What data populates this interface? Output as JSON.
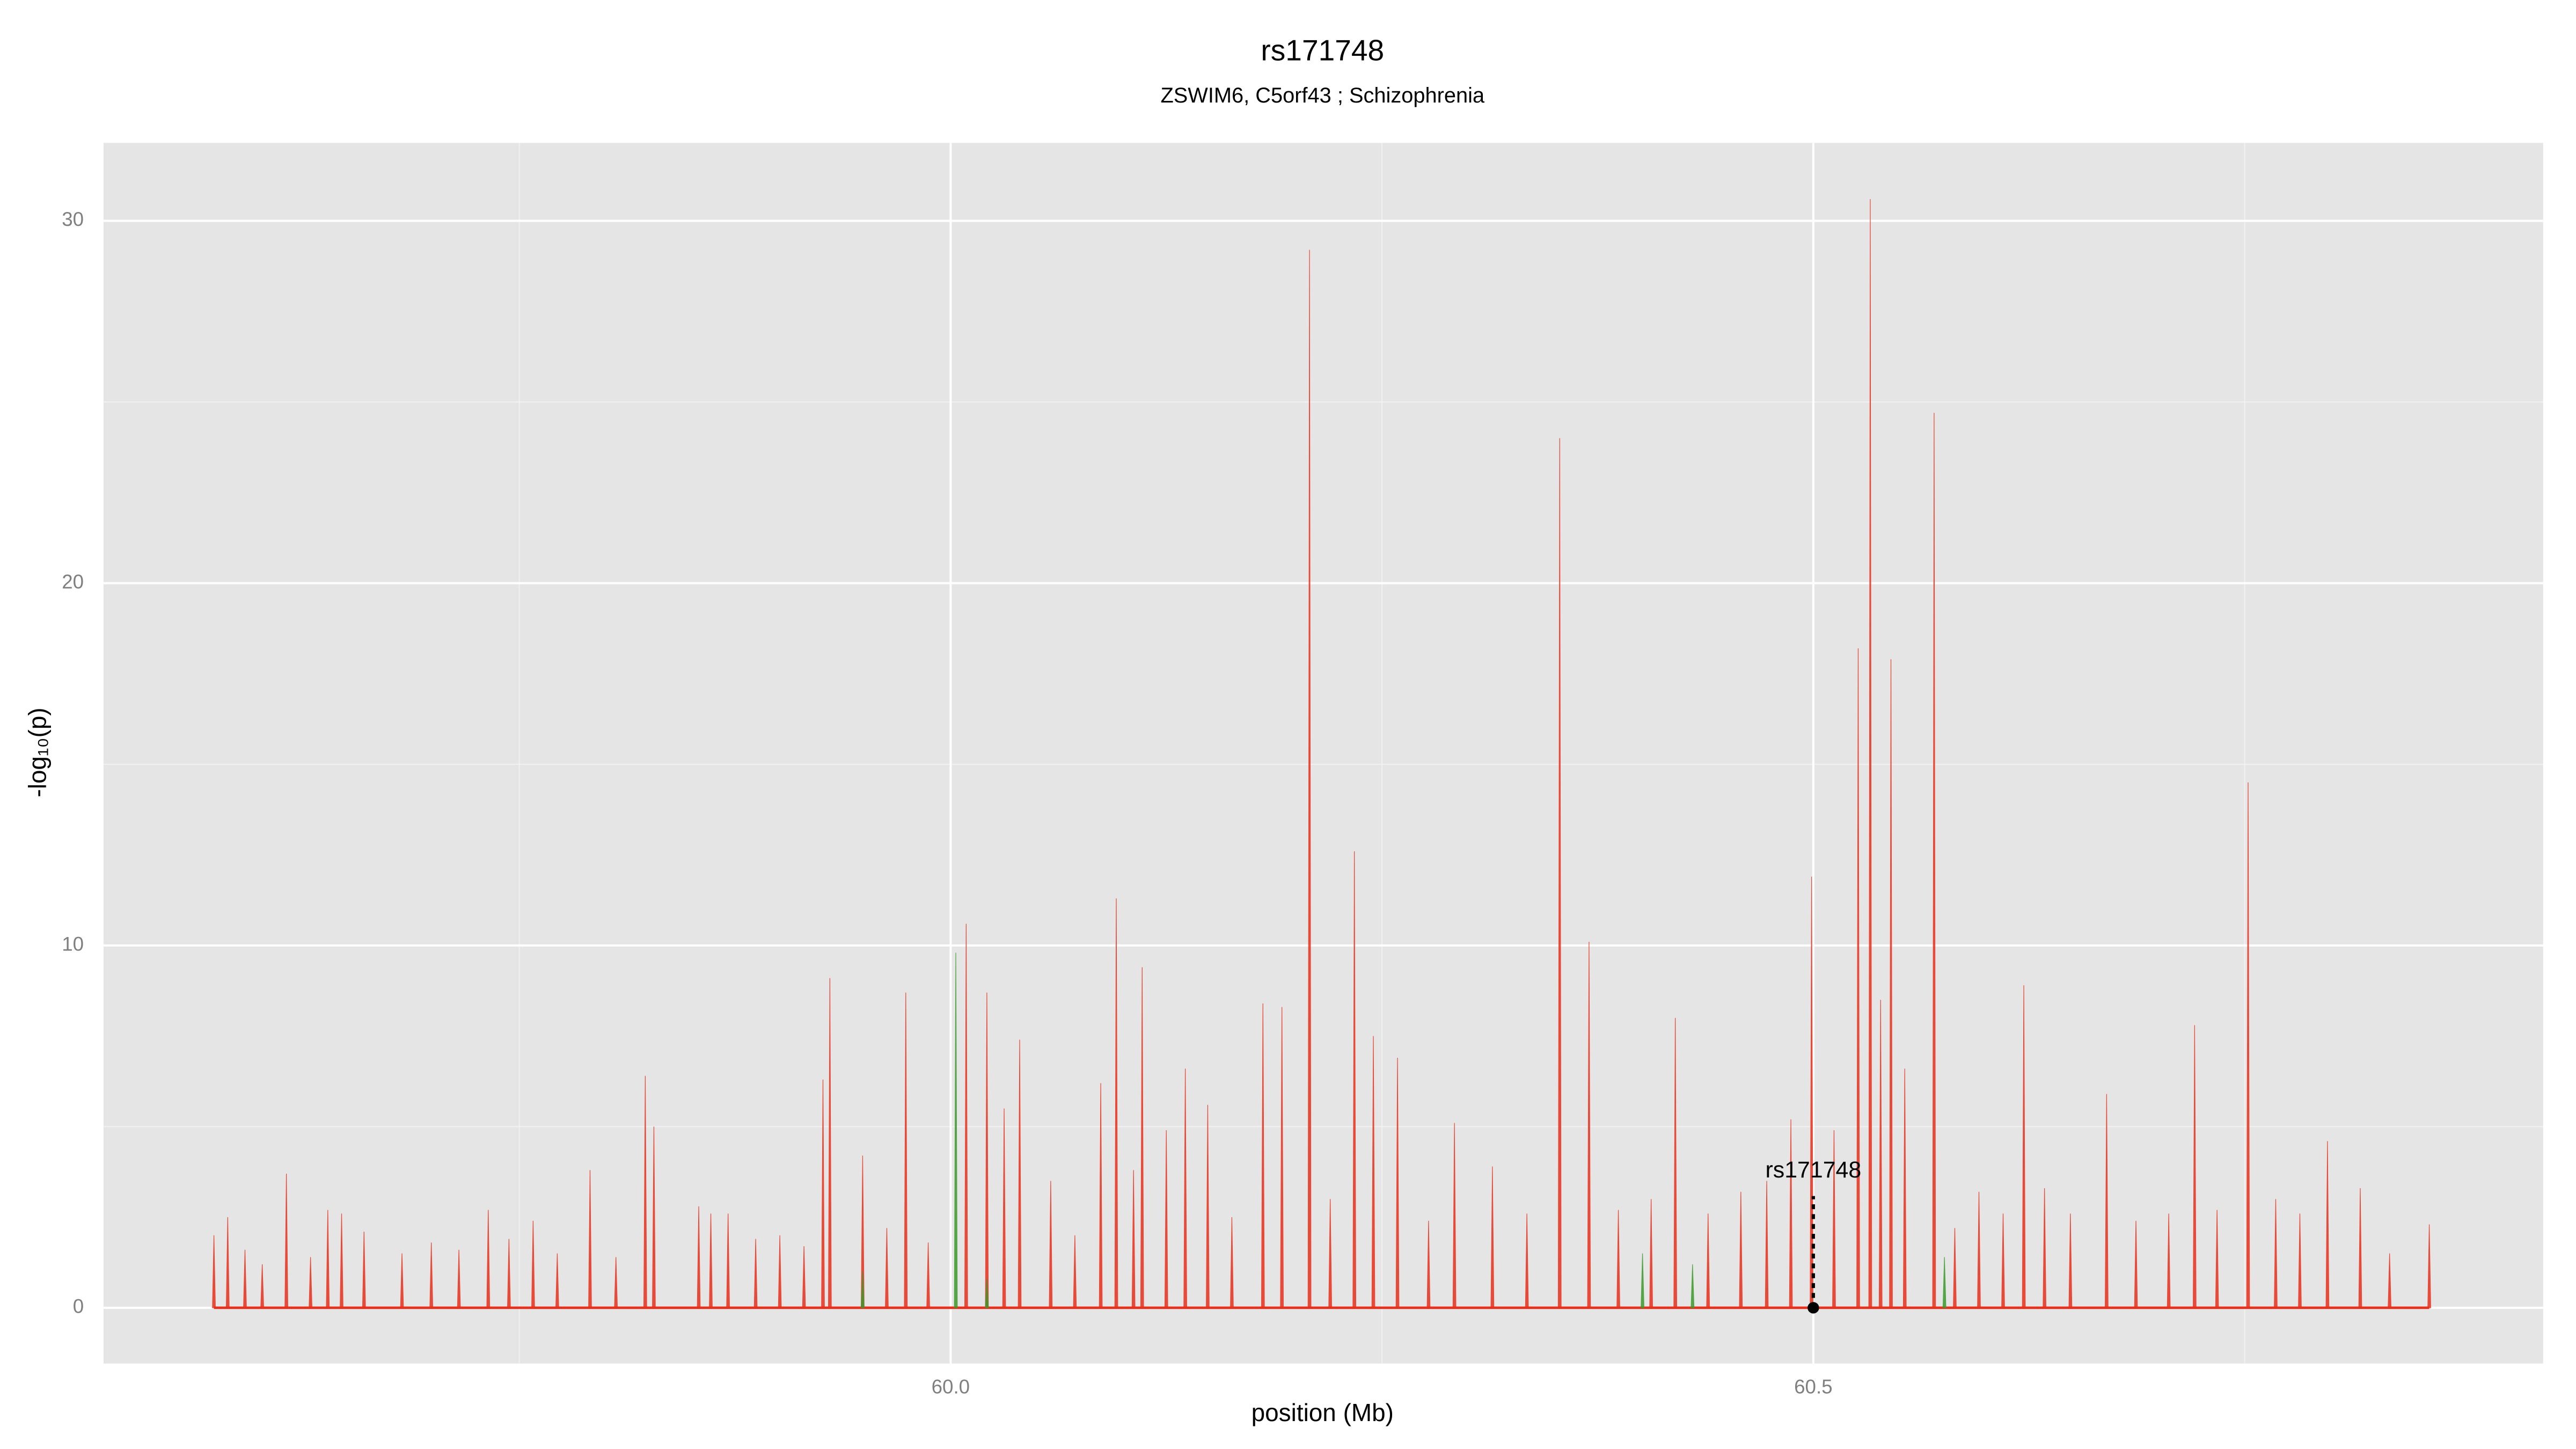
{
  "chart_data": {
    "type": "spike",
    "title": "rs171748",
    "subtitle": "ZSWIM6, C5orf43 ; Schizophrenia",
    "x_label": "position (Mb)",
    "y_label": "-log₁₀(p)",
    "xlim": [
      59.509,
      60.923
    ],
    "ylim": [
      -1.54,
      32.15
    ],
    "xticks": [
      {
        "value": 60,
        "label": "60.0"
      },
      {
        "value": 60.5,
        "label": "60.5"
      }
    ],
    "yticks": [
      0,
      10,
      20,
      30
    ],
    "grid": true,
    "series": [
      {
        "color": "#e8301c",
        "x": [
          59.573,
          59.581,
          59.591,
          59.601,
          59.615,
          59.629,
          59.639,
          59.647,
          59.66,
          59.682,
          59.699,
          59.715,
          59.732,
          59.744,
          59.758,
          59.772,
          59.791,
          59.806,
          59.823,
          59.828,
          59.854,
          59.861,
          59.871,
          59.887,
          59.901,
          59.915,
          59.926,
          59.93,
          59.949,
          59.963,
          59.974,
          59.987,
          60.009,
          60.021,
          60.031,
          60.04,
          60.058,
          60.072,
          60.087,
          60.096,
          60.106,
          60.111,
          60.125,
          60.136,
          60.149,
          60.163,
          60.181,
          60.192,
          60.208,
          60.22,
          60.234,
          60.245,
          60.259,
          60.277,
          60.292,
          60.314,
          60.334,
          60.353,
          60.37,
          60.387,
          60.406,
          60.42,
          60.439,
          60.458,
          60.473,
          60.487,
          60.499,
          60.512,
          60.526,
          60.533,
          60.539,
          60.545,
          60.553,
          60.57,
          60.582,
          60.596,
          60.61,
          60.622,
          60.634,
          60.649,
          60.67,
          60.687,
          60.706,
          60.721,
          60.734,
          60.752,
          60.768,
          60.782,
          60.798,
          60.817,
          60.834,
          60.857
        ],
        "values": [
          2.0,
          2.5,
          1.6,
          1.2,
          3.7,
          1.4,
          2.7,
          2.6,
          2.1,
          1.5,
          1.8,
          1.6,
          2.7,
          1.9,
          2.4,
          1.5,
          3.8,
          1.4,
          6.4,
          5.0,
          2.8,
          2.6,
          2.6,
          1.9,
          2.0,
          1.7,
          6.3,
          9.1,
          4.2,
          2.2,
          8.7,
          1.8,
          10.6,
          8.7,
          5.5,
          7.4,
          3.5,
          2.0,
          6.2,
          11.3,
          3.8,
          9.4,
          4.9,
          6.6,
          5.6,
          2.5,
          8.4,
          8.3,
          29.2,
          3.0,
          12.6,
          7.5,
          6.9,
          2.4,
          5.1,
          3.9,
          2.6,
          24.0,
          10.1,
          2.7,
          3.0,
          8.0,
          2.6,
          3.2,
          3.5,
          5.2,
          11.9,
          4.9,
          18.2,
          30.6,
          8.5,
          17.9,
          6.6,
          24.7,
          2.2,
          3.2,
          2.6,
          8.9,
          3.3,
          2.6,
          5.9,
          2.4,
          2.6,
          7.8,
          2.7,
          14.5,
          3.0,
          2.6,
          4.6,
          3.3,
          1.5,
          2.3
        ]
      },
      {
        "color": "#3a9a2a",
        "x": [
          59.949,
          60.003,
          60.021,
          60.401,
          60.43,
          60.576
        ],
        "values": [
          1.0,
          9.8,
          0.8,
          1.5,
          1.2,
          1.4
        ]
      }
    ],
    "annotation": {
      "label": "rs171748",
      "x": 60.5,
      "y": 0
    }
  }
}
